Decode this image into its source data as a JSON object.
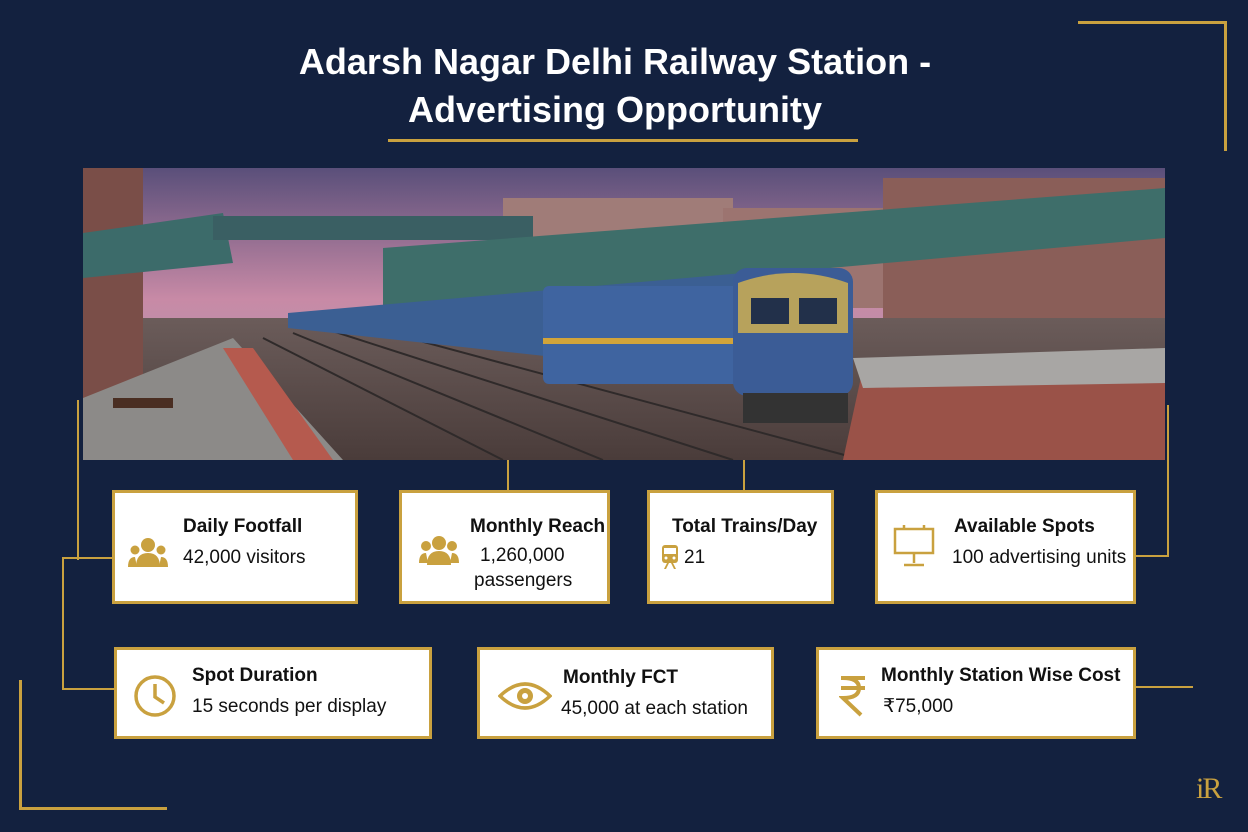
{
  "title": {
    "line1": "Adarsh Nagar Delhi Railway Station -",
    "line2": "Advertising Opportunity"
  },
  "colors": {
    "background": "#13213f",
    "accent_gold": "#c9a13f",
    "card_bg": "#ffffff"
  },
  "stats": [
    {
      "label": "Daily Footfall",
      "value": "42,000 visitors",
      "icon": "people-icon"
    },
    {
      "label": "Monthly Reach",
      "value_line1": "1,260,000",
      "value_line2": "passengers",
      "icon": "people-icon"
    },
    {
      "label": "Total Trains/Day",
      "value": "21",
      "icon": "train-icon"
    },
    {
      "label": "Available Spots",
      "value": "100 advertising units",
      "icon": "billboard-icon"
    },
    {
      "label": "Spot Duration",
      "value": "15 seconds per display",
      "icon": "clock-icon"
    },
    {
      "label": "Monthly FCT",
      "value": "45,000 at each station",
      "icon": "eye-icon"
    },
    {
      "label": "Monthly Station Wise Cost",
      "value": "₹75,000",
      "icon": "rupee-icon"
    }
  ],
  "logo": {
    "mark": "iR"
  }
}
